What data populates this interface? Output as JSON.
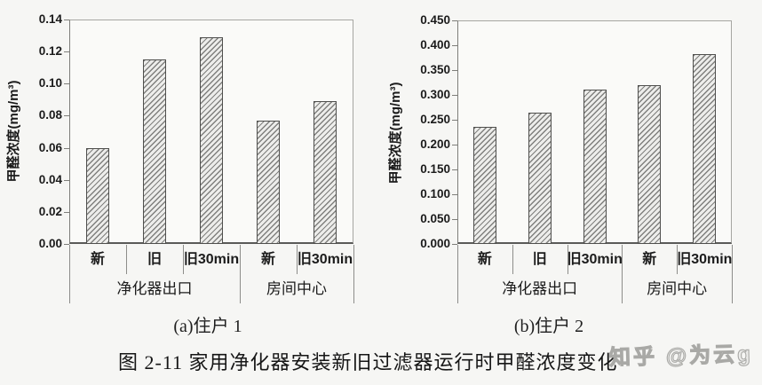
{
  "figure": {
    "caption": "图 2-11 家用净化器安装新旧过滤器运行时甲醛浓度变化",
    "watermark": "知乎 @为云g",
    "colors": {
      "text": "#1c1c1c",
      "axis": "#8d8d8a",
      "bar_fill": "#ededeb",
      "bar_hatch": "#80807e",
      "bar_border": "#4f4f4d",
      "watermark": "#a9a9a6",
      "background": "#f6f6f4"
    }
  },
  "chart_data": [
    {
      "type": "bar",
      "title": "(a)住户 1",
      "ylabel": "甲醛浓度(mg/m³)",
      "categories": [
        "新",
        "旧",
        "旧30min",
        "新",
        "旧30min"
      ],
      "values": [
        0.06,
        0.115,
        0.129,
        0.077,
        0.089
      ],
      "groups": [
        {
          "label": "净化器出口",
          "span": 3
        },
        {
          "label": "房间中心",
          "span": 2
        }
      ],
      "ylim": [
        0,
        0.14
      ],
      "ytick_step": 0.02,
      "ytick_decimals": 2,
      "grid": false,
      "legend_position": "none",
      "bar_hatch": "diagonal"
    },
    {
      "type": "bar",
      "title": "(b)住户 2",
      "ylabel": "甲醛浓度(mg/m³)",
      "categories": [
        "新",
        "旧",
        "旧30min",
        "新",
        "旧30min"
      ],
      "values": [
        0.235,
        0.265,
        0.31,
        0.32,
        0.383
      ],
      "groups": [
        {
          "label": "净化器出口",
          "span": 3
        },
        {
          "label": "房间中心",
          "span": 2
        }
      ],
      "ylim": [
        0,
        0.45
      ],
      "ytick_step": 0.05,
      "ytick_decimals": 3,
      "grid": false,
      "legend_position": "none",
      "bar_hatch": "diagonal"
    }
  ]
}
